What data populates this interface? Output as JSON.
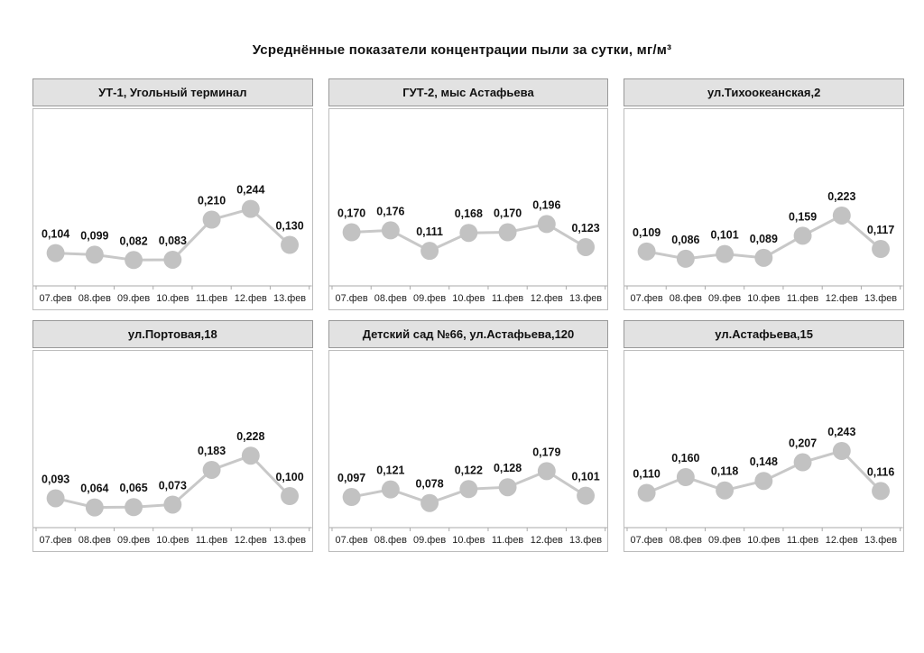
{
  "page_title": "Усреднённые показатели концентрации пыли за сутки, мг/м³",
  "colors": {
    "panel_header_bg": "#e2e2e2",
    "panel_header_border": "#999999",
    "chart_box_border": "#bcbcbc",
    "series_line": "#c8c8c8",
    "marker_fill": "#c2c2c2",
    "axis_line": "#aaaaaa",
    "data_label_text": "#111111",
    "tick_label_text": "#222222"
  },
  "chart_data": [
    {
      "type": "line",
      "title": "УТ-1, Угольный терминал",
      "categories": [
        "07.фев",
        "08.фев",
        "09.фев",
        "10.фев",
        "11.фев",
        "12.фев",
        "13.фев"
      ],
      "values": [
        0.104,
        0.099,
        0.082,
        0.083,
        0.21,
        0.244,
        0.13
      ],
      "ylim": [
        0,
        0.56
      ],
      "grid": false,
      "legend": false,
      "decimal_separator": ","
    },
    {
      "type": "line",
      "title": "ГУТ-2, мыс Астафьева",
      "categories": [
        "07.фев",
        "08.фев",
        "09.фев",
        "10.фев",
        "11.фев",
        "12.фев",
        "13.фев"
      ],
      "values": [
        0.17,
        0.176,
        0.111,
        0.168,
        0.17,
        0.196,
        0.123
      ],
      "ylim": [
        0,
        0.56
      ],
      "grid": false,
      "legend": false,
      "decimal_separator": ","
    },
    {
      "type": "line",
      "title": "ул.Тихоокеанская,2",
      "categories": [
        "07.фев",
        "08.фев",
        "09.фев",
        "10.фев",
        "11.фев",
        "12.фев",
        "13.фев"
      ],
      "values": [
        0.109,
        0.086,
        0.101,
        0.089,
        0.159,
        0.223,
        0.117
      ],
      "ylim": [
        0,
        0.56
      ],
      "grid": false,
      "legend": false,
      "decimal_separator": ","
    },
    {
      "type": "line",
      "title": "ул.Портовая,18",
      "categories": [
        "07.фев",
        "08.фев",
        "09.фев",
        "10.фев",
        "11.фев",
        "12.фев",
        "13.фев"
      ],
      "values": [
        0.093,
        0.064,
        0.065,
        0.073,
        0.183,
        0.228,
        0.1
      ],
      "ylim": [
        0,
        0.56
      ],
      "grid": false,
      "legend": false,
      "decimal_separator": ","
    },
    {
      "type": "line",
      "title": "Детский сад №66, ул.Астафьева,120",
      "categories": [
        "07.фев",
        "08.фев",
        "09.фев",
        "10.фев",
        "11.фев",
        "12.фев",
        "13.фев"
      ],
      "values": [
        0.097,
        0.121,
        0.078,
        0.122,
        0.128,
        0.179,
        0.101
      ],
      "ylim": [
        0,
        0.56
      ],
      "grid": false,
      "legend": false,
      "decimal_separator": ","
    },
    {
      "type": "line",
      "title": "ул.Астафьева,15",
      "categories": [
        "07.фев",
        "08.фев",
        "09.фев",
        "10.фев",
        "11.фев",
        "12.фев",
        "13.фев"
      ],
      "values": [
        0.11,
        0.16,
        0.118,
        0.148,
        0.207,
        0.243,
        0.116
      ],
      "ylim": [
        0,
        0.56
      ],
      "grid": false,
      "legend": false,
      "decimal_separator": ","
    }
  ]
}
